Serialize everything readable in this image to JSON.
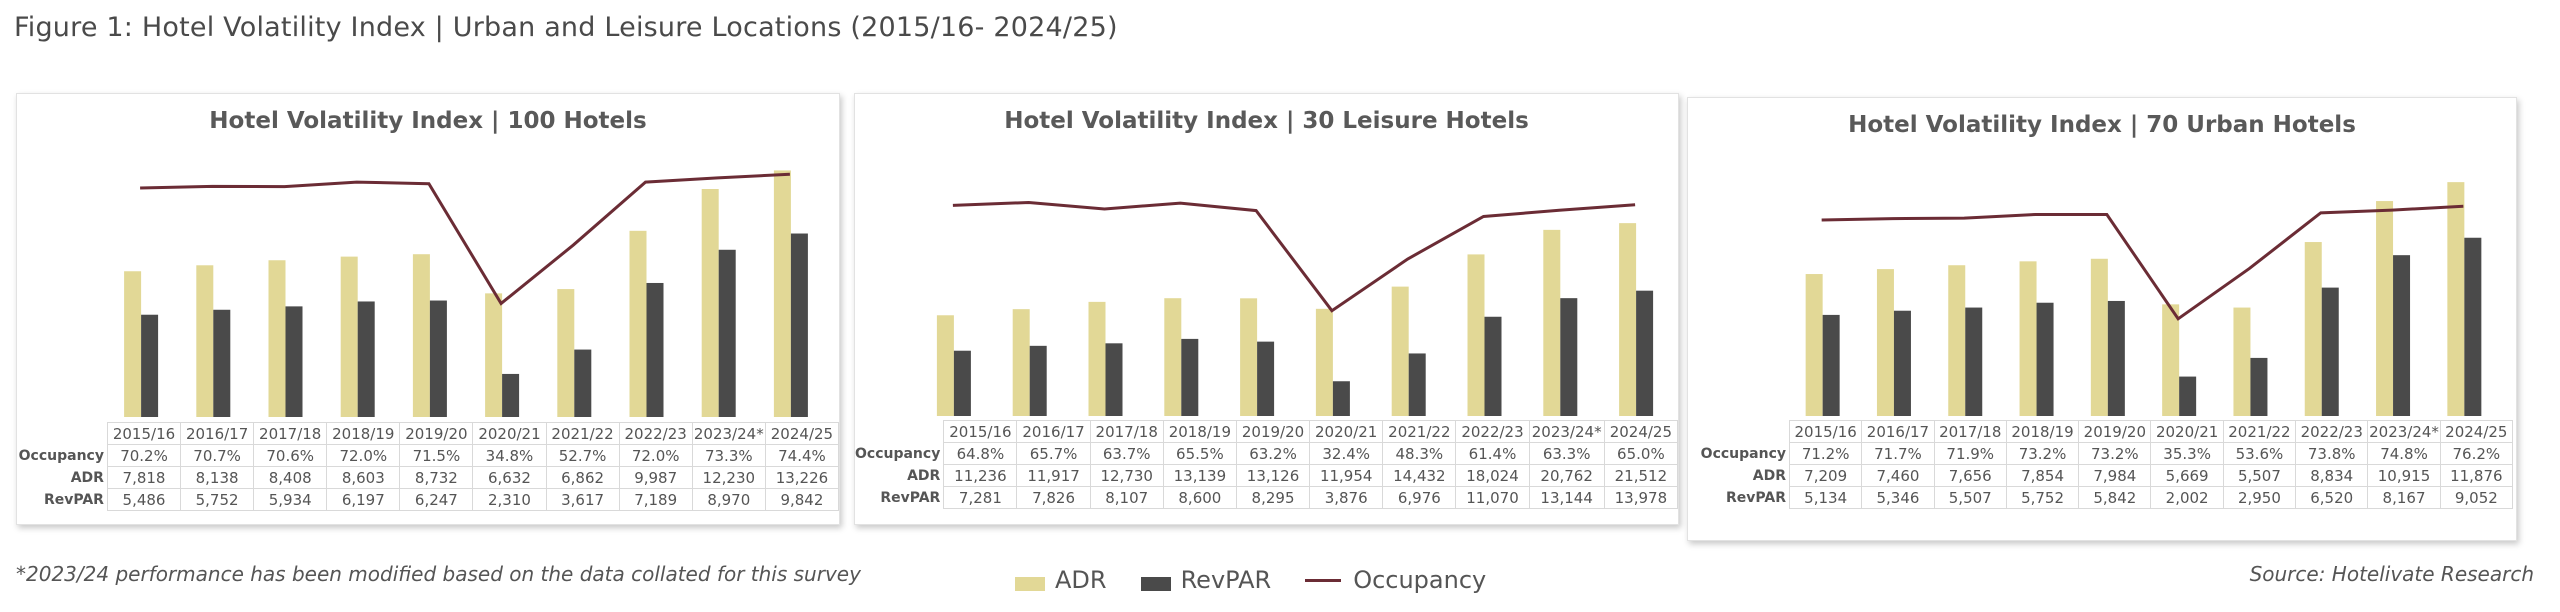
{
  "figure_title": "Figure 1: Hotel Volatility Index | Urban and Leisure Locations (2015/16- 2024/25)",
  "footnote": "*2023/24 performance has been modified based on the data collated for this survey",
  "source": "Source: Hotelivate Research",
  "legend": {
    "adr": "ADR",
    "revpar": "RevPAR",
    "occupancy": "Occupancy"
  },
  "colors": {
    "adr": "#e2d896",
    "revpar": "#4a4a4a",
    "occupancy": "#6b2c35"
  },
  "row_labels": {
    "occupancy": "Occupancy",
    "adr": "ADR",
    "revpar": "RevPAR"
  },
  "chart_data": [
    {
      "type": "bar+line",
      "title": "Hotel Volatility Index | 100 Hotels",
      "categories": [
        "2015/16",
        "2016/17",
        "2017/18",
        "2018/19",
        "2019/20",
        "2020/21",
        "2021/22",
        "2022/23",
        "2023/24*",
        "2024/25"
      ],
      "series": [
        {
          "name": "ADR",
          "type": "bar",
          "values": [
            7818,
            8138,
            8408,
            8603,
            8732,
            6632,
            6862,
            9987,
            12230,
            13226
          ],
          "labels": [
            "7,818",
            "8,138",
            "8,408",
            "8,603",
            "8,732",
            "6,632",
            "6,862",
            "9,987",
            "12,230",
            "13,226"
          ]
        },
        {
          "name": "RevPAR",
          "type": "bar",
          "values": [
            5486,
            5752,
            5934,
            6197,
            6247,
            2310,
            3617,
            7189,
            8970,
            9842
          ],
          "labels": [
            "5,486",
            "5,752",
            "5,934",
            "6,197",
            "6,247",
            "2,310",
            "3,617",
            "7,189",
            "8,970",
            "9,842"
          ]
        },
        {
          "name": "Occupancy",
          "type": "line",
          "axis": "secondary",
          "values": [
            70.2,
            70.7,
            70.6,
            72.0,
            71.5,
            34.8,
            52.7,
            72.0,
            73.3,
            74.4
          ],
          "labels": [
            "70.2%",
            "70.7%",
            "70.6%",
            "72.0%",
            "71.5%",
            "34.8%",
            "52.7%",
            "72.0%",
            "73.3%",
            "74.4%"
          ]
        }
      ],
      "ylim": [
        0,
        14000
      ],
      "y2lim": [
        0,
        80
      ],
      "grid": false,
      "axes_visible": false
    },
    {
      "type": "bar+line",
      "title": "Hotel Volatility Index | 30 Leisure Hotels",
      "categories": [
        "2015/16",
        "2016/17",
        "2017/18",
        "2018/19",
        "2019/20",
        "2020/21",
        "2021/22",
        "2022/23",
        "2023/24*",
        "2024/25"
      ],
      "series": [
        {
          "name": "ADR",
          "type": "bar",
          "values": [
            11236,
            11917,
            12730,
            13139,
            13126,
            11954,
            14432,
            18024,
            20762,
            21512
          ],
          "labels": [
            "11,236",
            "11,917",
            "12,730",
            "13,139",
            "13,126",
            "11,954",
            "14,432",
            "18,024",
            "20,762",
            "21,512"
          ]
        },
        {
          "name": "RevPAR",
          "type": "bar",
          "values": [
            7281,
            7826,
            8107,
            8600,
            8295,
            3876,
            6976,
            11070,
            13144,
            13978
          ],
          "labels": [
            "7,281",
            "7,826",
            "8,107",
            "8,600",
            "8,295",
            "3,876",
            "6,976",
            "11,070",
            "13,144",
            "13,978"
          ]
        },
        {
          "name": "Occupancy",
          "type": "line",
          "axis": "secondary",
          "values": [
            64.8,
            65.7,
            63.7,
            65.5,
            63.2,
            32.4,
            48.3,
            61.4,
            63.3,
            65.0
          ],
          "labels": [
            "64.8%",
            "65.7%",
            "63.7%",
            "65.5%",
            "63.2%",
            "32.4%",
            "48.3%",
            "61.4%",
            "63.3%",
            "65.0%"
          ]
        }
      ],
      "ylim": [
        0,
        29000
      ],
      "y2lim": [
        0,
        80
      ],
      "grid": false,
      "axes_visible": false
    },
    {
      "type": "bar+line",
      "title": "Hotel Volatility Index | 70 Urban Hotels",
      "categories": [
        "2015/16",
        "2016/17",
        "2017/18",
        "2018/19",
        "2019/20",
        "2020/21",
        "2021/22",
        "2022/23",
        "2023/24*",
        "2024/25"
      ],
      "series": [
        {
          "name": "ADR",
          "type": "bar",
          "values": [
            7209,
            7460,
            7656,
            7854,
            7984,
            5669,
            5507,
            8834,
            10915,
            11876
          ],
          "labels": [
            "7,209",
            "7,460",
            "7,656",
            "7,854",
            "7,984",
            "5,669",
            "5,507",
            "8,834",
            "10,915",
            "11,876"
          ]
        },
        {
          "name": "RevPAR",
          "type": "bar",
          "values": [
            5134,
            5346,
            5507,
            5752,
            5842,
            2002,
            2950,
            6520,
            8167,
            9052
          ],
          "labels": [
            "5,134",
            "5,346",
            "5,507",
            "5,752",
            "5,842",
            "2,002",
            "2,950",
            "6,520",
            "8,167",
            "9,052"
          ]
        },
        {
          "name": "Occupancy",
          "type": "line",
          "axis": "secondary",
          "values": [
            71.2,
            71.7,
            71.9,
            73.2,
            73.2,
            35.3,
            53.6,
            73.8,
            74.8,
            76.2
          ],
          "labels": [
            "71.2%",
            "71.7%",
            "71.9%",
            "73.2%",
            "73.2%",
            "35.3%",
            "53.6%",
            "73.8%",
            "74.8%",
            "76.2%"
          ]
        }
      ],
      "ylim": [
        0,
        13000
      ],
      "y2lim": [
        0,
        93
      ],
      "grid": false,
      "axes_visible": false
    }
  ]
}
